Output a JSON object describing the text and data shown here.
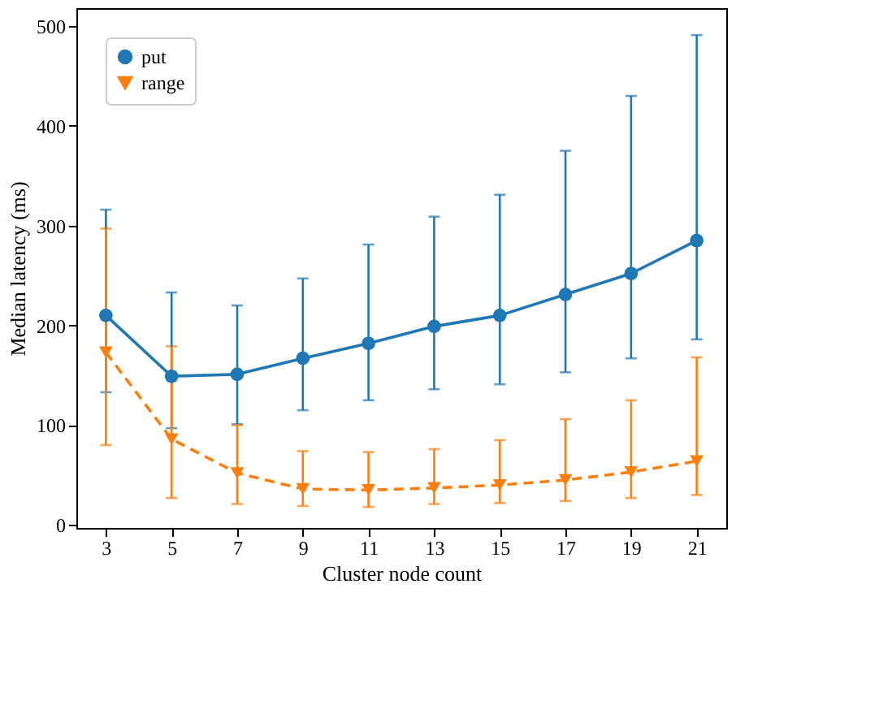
{
  "chart_data": {
    "type": "line",
    "xlabel": "Cluster node count",
    "ylabel": "Median latency (ms)",
    "x": [
      3,
      5,
      7,
      9,
      11,
      13,
      15,
      17,
      19,
      21
    ],
    "xlim": [
      2.1,
      21.9
    ],
    "xticks": [
      3,
      5,
      7,
      9,
      11,
      13,
      15,
      17,
      19,
      21
    ],
    "ylim": [
      -3,
      518
    ],
    "yticks": [
      0,
      100,
      200,
      300,
      400,
      500
    ],
    "grid": false,
    "legend": "top left",
    "series": [
      {
        "name": "put",
        "color": "#1f77b4",
        "marker": "circle",
        "line_style": "solid",
        "values": [
          210,
          149,
          151,
          167,
          182,
          199,
          210,
          231,
          252,
          285
        ],
        "errors": [
          [
            133,
            316
          ],
          [
            97,
            233
          ],
          [
            101,
            220
          ],
          [
            115,
            247
          ],
          [
            125,
            281
          ],
          [
            136,
            309
          ],
          [
            141,
            331
          ],
          [
            153,
            375
          ],
          [
            167,
            430
          ],
          [
            186,
            491
          ]
        ]
      },
      {
        "name": "range",
        "color": "#ff7f0e",
        "marker": "triangle",
        "line_style": "dashed",
        "values": [
          173,
          86,
          52,
          36,
          35,
          37,
          40,
          45,
          53,
          64
        ],
        "errors": [
          [
            80,
            297
          ],
          [
            27,
            179
          ],
          [
            21,
            100
          ],
          [
            19,
            74
          ],
          [
            18,
            73
          ],
          [
            21,
            76
          ],
          [
            22,
            85
          ],
          [
            24,
            106
          ],
          [
            27,
            125
          ],
          [
            30,
            168
          ]
        ]
      }
    ]
  }
}
